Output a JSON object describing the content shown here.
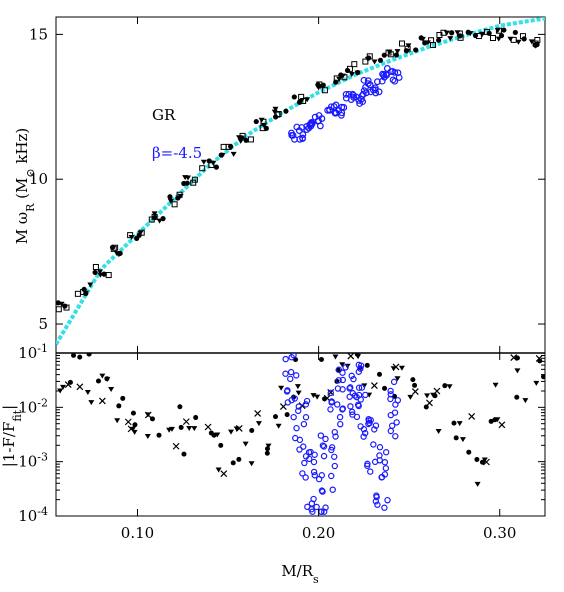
{
  "chart_data": [
    {
      "type": "scatter",
      "panel": "top",
      "ylabel": "M ω",
      "ylabel_sub": "R",
      "ylabel_units_pre": " (M",
      "ylabel_units_post": " kHz)",
      "ylabel_sun": "⊙",
      "xlim": [
        0.055,
        0.325
      ],
      "ylim": [
        4.0,
        15.6
      ],
      "yticks": [
        5,
        10,
        15
      ],
      "yticklabels": [
        "5",
        "10",
        "15"
      ],
      "legend_placement": "upper-left-inside",
      "series": [
        {
          "name": "GR",
          "color": "#000000",
          "marker": "mixed-black",
          "x": [
            0.06,
            0.07,
            0.08,
            0.09,
            0.1,
            0.11,
            0.12,
            0.13,
            0.14,
            0.15,
            0.16,
            0.17,
            0.18,
            0.19,
            0.2,
            0.21,
            0.22,
            0.23,
            0.24,
            0.25,
            0.26,
            0.27,
            0.28,
            0.29,
            0.3,
            0.31,
            0.32
          ],
          "y": [
            5.6,
            6.2,
            6.8,
            7.5,
            8.1,
            8.7,
            9.3,
            9.9,
            10.5,
            11.0,
            11.5,
            11.9,
            12.3,
            12.7,
            13.1,
            13.5,
            13.8,
            14.1,
            14.4,
            14.6,
            14.8,
            14.9,
            15.0,
            15.0,
            15.0,
            14.9,
            14.75
          ]
        },
        {
          "name": "β=-4.5",
          "color": "#1a1aff",
          "marker": "mixed-blue",
          "x": [
            0.19,
            0.2,
            0.21,
            0.22,
            0.23,
            0.24
          ],
          "y": [
            11.6,
            12.0,
            12.4,
            12.8,
            13.2,
            13.6
          ]
        },
        {
          "name": "",
          "color": "#33e0e6",
          "marker": "fit-line",
          "x": [
            0.055,
            0.08,
            0.1,
            0.12,
            0.14,
            0.16,
            0.18,
            0.2,
            0.22,
            0.24,
            0.26,
            0.28,
            0.3,
            0.325
          ],
          "y": [
            4.3,
            6.9,
            8.1,
            9.3,
            10.5,
            11.5,
            12.3,
            13.0,
            13.6,
            14.1,
            14.55,
            14.95,
            15.3,
            15.55
          ]
        }
      ]
    },
    {
      "type": "scatter",
      "panel": "bottom",
      "ylabel": "|1-F/F",
      "ylabel_sub": "fit",
      "ylabel_end": "|",
      "xlabel": "M/R",
      "xlabel_sub": "s",
      "xlim": [
        0.055,
        0.325
      ],
      "ylim_log10": [
        -4,
        -1
      ],
      "yscale": "log",
      "xticks": [
        0.1,
        0.2,
        0.3
      ],
      "xticklabels": [
        "0.10",
        "0.20",
        "0.30"
      ],
      "yticks": [
        -4,
        -3,
        -2,
        -1
      ],
      "ytick_base": "10",
      "yticklabels_exp": [
        "-4",
        "-3",
        "-2",
        "-1"
      ],
      "series": [
        {
          "name": "GR",
          "color": "#000000",
          "x": [
            0.06,
            0.07,
            0.08,
            0.09,
            0.1,
            0.11,
            0.12,
            0.13,
            0.14,
            0.15,
            0.16,
            0.17,
            0.18,
            0.19,
            0.2,
            0.21,
            0.22,
            0.23,
            0.24,
            0.25,
            0.26,
            0.27,
            0.28,
            0.29,
            0.3,
            0.31,
            0.32
          ],
          "y": [
            0.04,
            0.035,
            0.02,
            0.012,
            0.008,
            0.006,
            0.004,
            0.003,
            0.002,
            0.0015,
            0.002,
            0.004,
            0.01,
            0.03,
            0.035,
            0.036,
            0.036,
            0.035,
            0.034,
            0.03,
            0.02,
            0.01,
            0.004,
            0.001,
            0.01,
            0.03,
            0.05
          ]
        },
        {
          "name": "β=-4.5",
          "color": "#1a1aff",
          "x": [
            0.185,
            0.19,
            0.195,
            0.2,
            0.205,
            0.21,
            0.215,
            0.22,
            0.225,
            0.23,
            0.235,
            0.24
          ],
          "y": [
            0.03,
            0.005,
            0.0005,
            0.0002,
            0.001,
            0.01,
            0.02,
            0.03,
            0.01,
            0.002,
            0.0005,
            0.01
          ]
        }
      ]
    }
  ]
}
